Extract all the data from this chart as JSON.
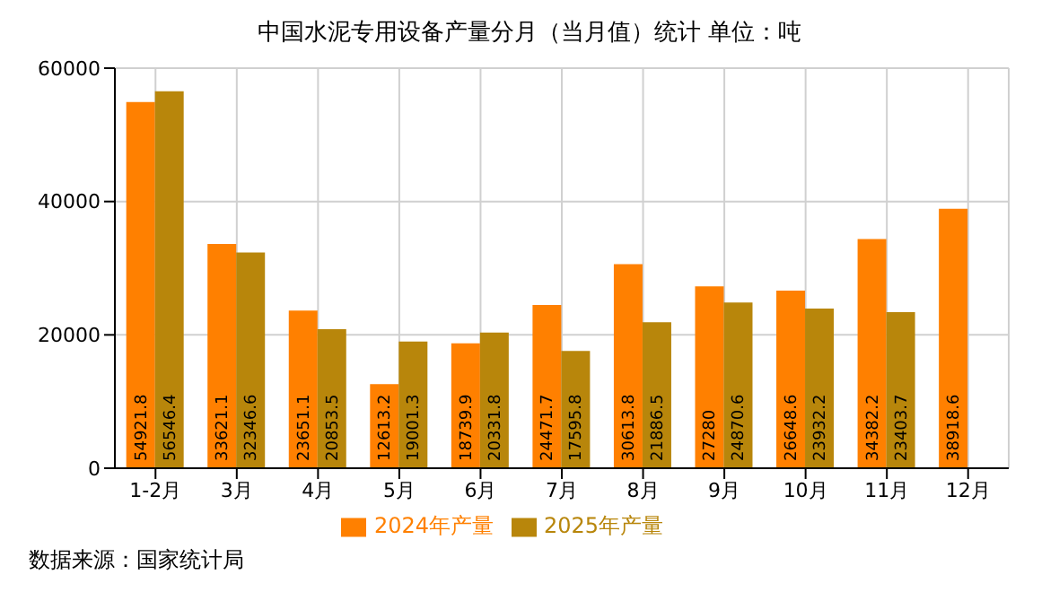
{
  "chart_data": {
    "type": "bar",
    "title": "中国水泥专用设备产量分月（当月值）统计  单位：吨",
    "categories": [
      "1-2月",
      "3月",
      "4月",
      "5月",
      "6月",
      "7月",
      "8月",
      "9月",
      "10月",
      "11月",
      "12月"
    ],
    "series": [
      {
        "name": "2024年产量",
        "color": "#ff8000",
        "values": [
          54921.8,
          33621.1,
          23651.1,
          12613.2,
          18739.9,
          24471.7,
          30613.8,
          27280,
          26648.6,
          34382.2,
          38918.6
        ]
      },
      {
        "name": "2025年产量",
        "color": "#b8860b",
        "values": [
          56546.4,
          32346.6,
          20853.5,
          19001.3,
          20331.8,
          17595.8,
          21886.5,
          24870.6,
          23932.2,
          23403.7,
          null
        ]
      }
    ],
    "ylim": [
      0,
      60000
    ],
    "yticks": [
      0,
      20000,
      40000,
      60000
    ],
    "grid": true,
    "legend": "bottom",
    "data_labels": true,
    "annotations": [
      "数据来源：国家统计局"
    ]
  }
}
